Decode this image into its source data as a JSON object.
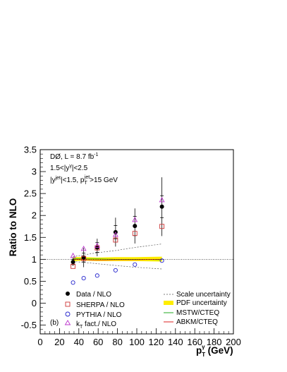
{
  "chart_data": {
    "type": "scatter",
    "xlabel_main": "p",
    "xlabel_sub": "T",
    "xlabel_sup": "γ",
    "xlabel_unit": "(GeV)",
    "ylabel": "Ratio to NLO",
    "xlim": [
      0,
      200
    ],
    "ylim": [
      -0.7,
      3.5
    ],
    "x_ticks": [
      0,
      20,
      40,
      60,
      80,
      100,
      120,
      140,
      160,
      180,
      200
    ],
    "y_ticks": [
      -0.5,
      0,
      0.5,
      1,
      1.5,
      2,
      2.5,
      3,
      3.5
    ],
    "x_tick_labels": [
      "0",
      "20",
      "40",
      "60",
      "80",
      "100",
      "120",
      "140",
      "160",
      "180",
      "200"
    ],
    "y_tick_labels": [
      "-0.5",
      "0",
      "0.5",
      "1",
      "1.5",
      "2",
      "2.5",
      "3",
      "3.5"
    ],
    "reference_line": 1,
    "annotations": {
      "line1": "DØ, L = 8.7 fb",
      "line1_sup": "-1",
      "line2_pre": "1.5<|y",
      "line2_sup": "γ",
      "line2_post": "|<2.5",
      "line3_a": "|y",
      "line3_a_sup": "jet",
      "line3_b": "|<1.5, p",
      "line3_b_sub": "T",
      "line3_b_sup": "jet",
      "line3_c": ">15 GeV",
      "panel_label": "(b)"
    },
    "series": [
      {
        "name": "Data / NLO",
        "color": "#000000",
        "marker": "filled-circle",
        "x": [
          34,
          45,
          59,
          78,
          98,
          126
        ],
        "y": [
          0.94,
          1.04,
          1.27,
          1.62,
          1.76,
          2.2
        ],
        "err_stat": [
          0.06,
          0.1,
          0.11,
          0.15,
          0.22,
          0.25
        ],
        "err_tot": [
          0.09,
          0.22,
          0.2,
          0.33,
          0.4,
          0.67
        ]
      },
      {
        "name": "SHERPA / NLO",
        "color": "#cc3333",
        "marker": "open-square",
        "x": [
          34,
          45,
          59,
          78,
          98,
          126
        ],
        "y": [
          0.84,
          1.02,
          1.26,
          1.44,
          1.59,
          1.75
        ]
      },
      {
        "name": "PYTHIA / NLO",
        "color": "#2222cc",
        "marker": "open-circle",
        "x": [
          34,
          45,
          59,
          78,
          98,
          126
        ],
        "y": [
          0.47,
          0.57,
          0.63,
          0.75,
          0.88,
          0.97
        ]
      },
      {
        "name": "k",
        "name_sub": "T",
        "name_post": " fact./ NLO",
        "color": "#bb33cc",
        "marker": "open-triangle",
        "x": [
          34,
          45,
          59,
          78,
          98,
          126
        ],
        "y": [
          1.08,
          1.24,
          1.31,
          1.56,
          1.9,
          2.35
        ]
      }
    ],
    "bands": [
      {
        "name": "Scale uncertainty",
        "color": "#555555",
        "style": "dashed",
        "x": [
          34,
          45,
          59,
          78,
          98,
          126
        ],
        "upper": [
          1.06,
          1.1,
          1.15,
          1.2,
          1.27,
          1.35
        ],
        "lower": [
          0.95,
          0.93,
          0.9,
          0.86,
          0.82,
          0.78
        ]
      },
      {
        "name": "PDF uncertainty",
        "color": "#ffee00",
        "style": "filled",
        "x": [
          34,
          45,
          59,
          78,
          98,
          126
        ],
        "upper": [
          1.05,
          1.05,
          1.04,
          1.05,
          1.05,
          1.06
        ],
        "lower": [
          0.96,
          0.97,
          0.96,
          0.96,
          0.96,
          0.95
        ]
      },
      {
        "name": "MSTW/CTEQ",
        "color": "#22aa22",
        "style": "solid",
        "x": [
          34,
          45,
          59,
          78,
          98,
          126
        ],
        "y": [
          1.02,
          1.01,
          1.01,
          1.0,
          1.0,
          0.99
        ]
      },
      {
        "name": "ABKM/CTEQ",
        "color": "#dd2222",
        "style": "solid",
        "x": [
          34,
          45,
          59,
          78,
          98,
          126
        ],
        "y": [
          1.0,
          0.99,
          0.98,
          0.99,
          0.99,
          1.0
        ]
      }
    ]
  }
}
